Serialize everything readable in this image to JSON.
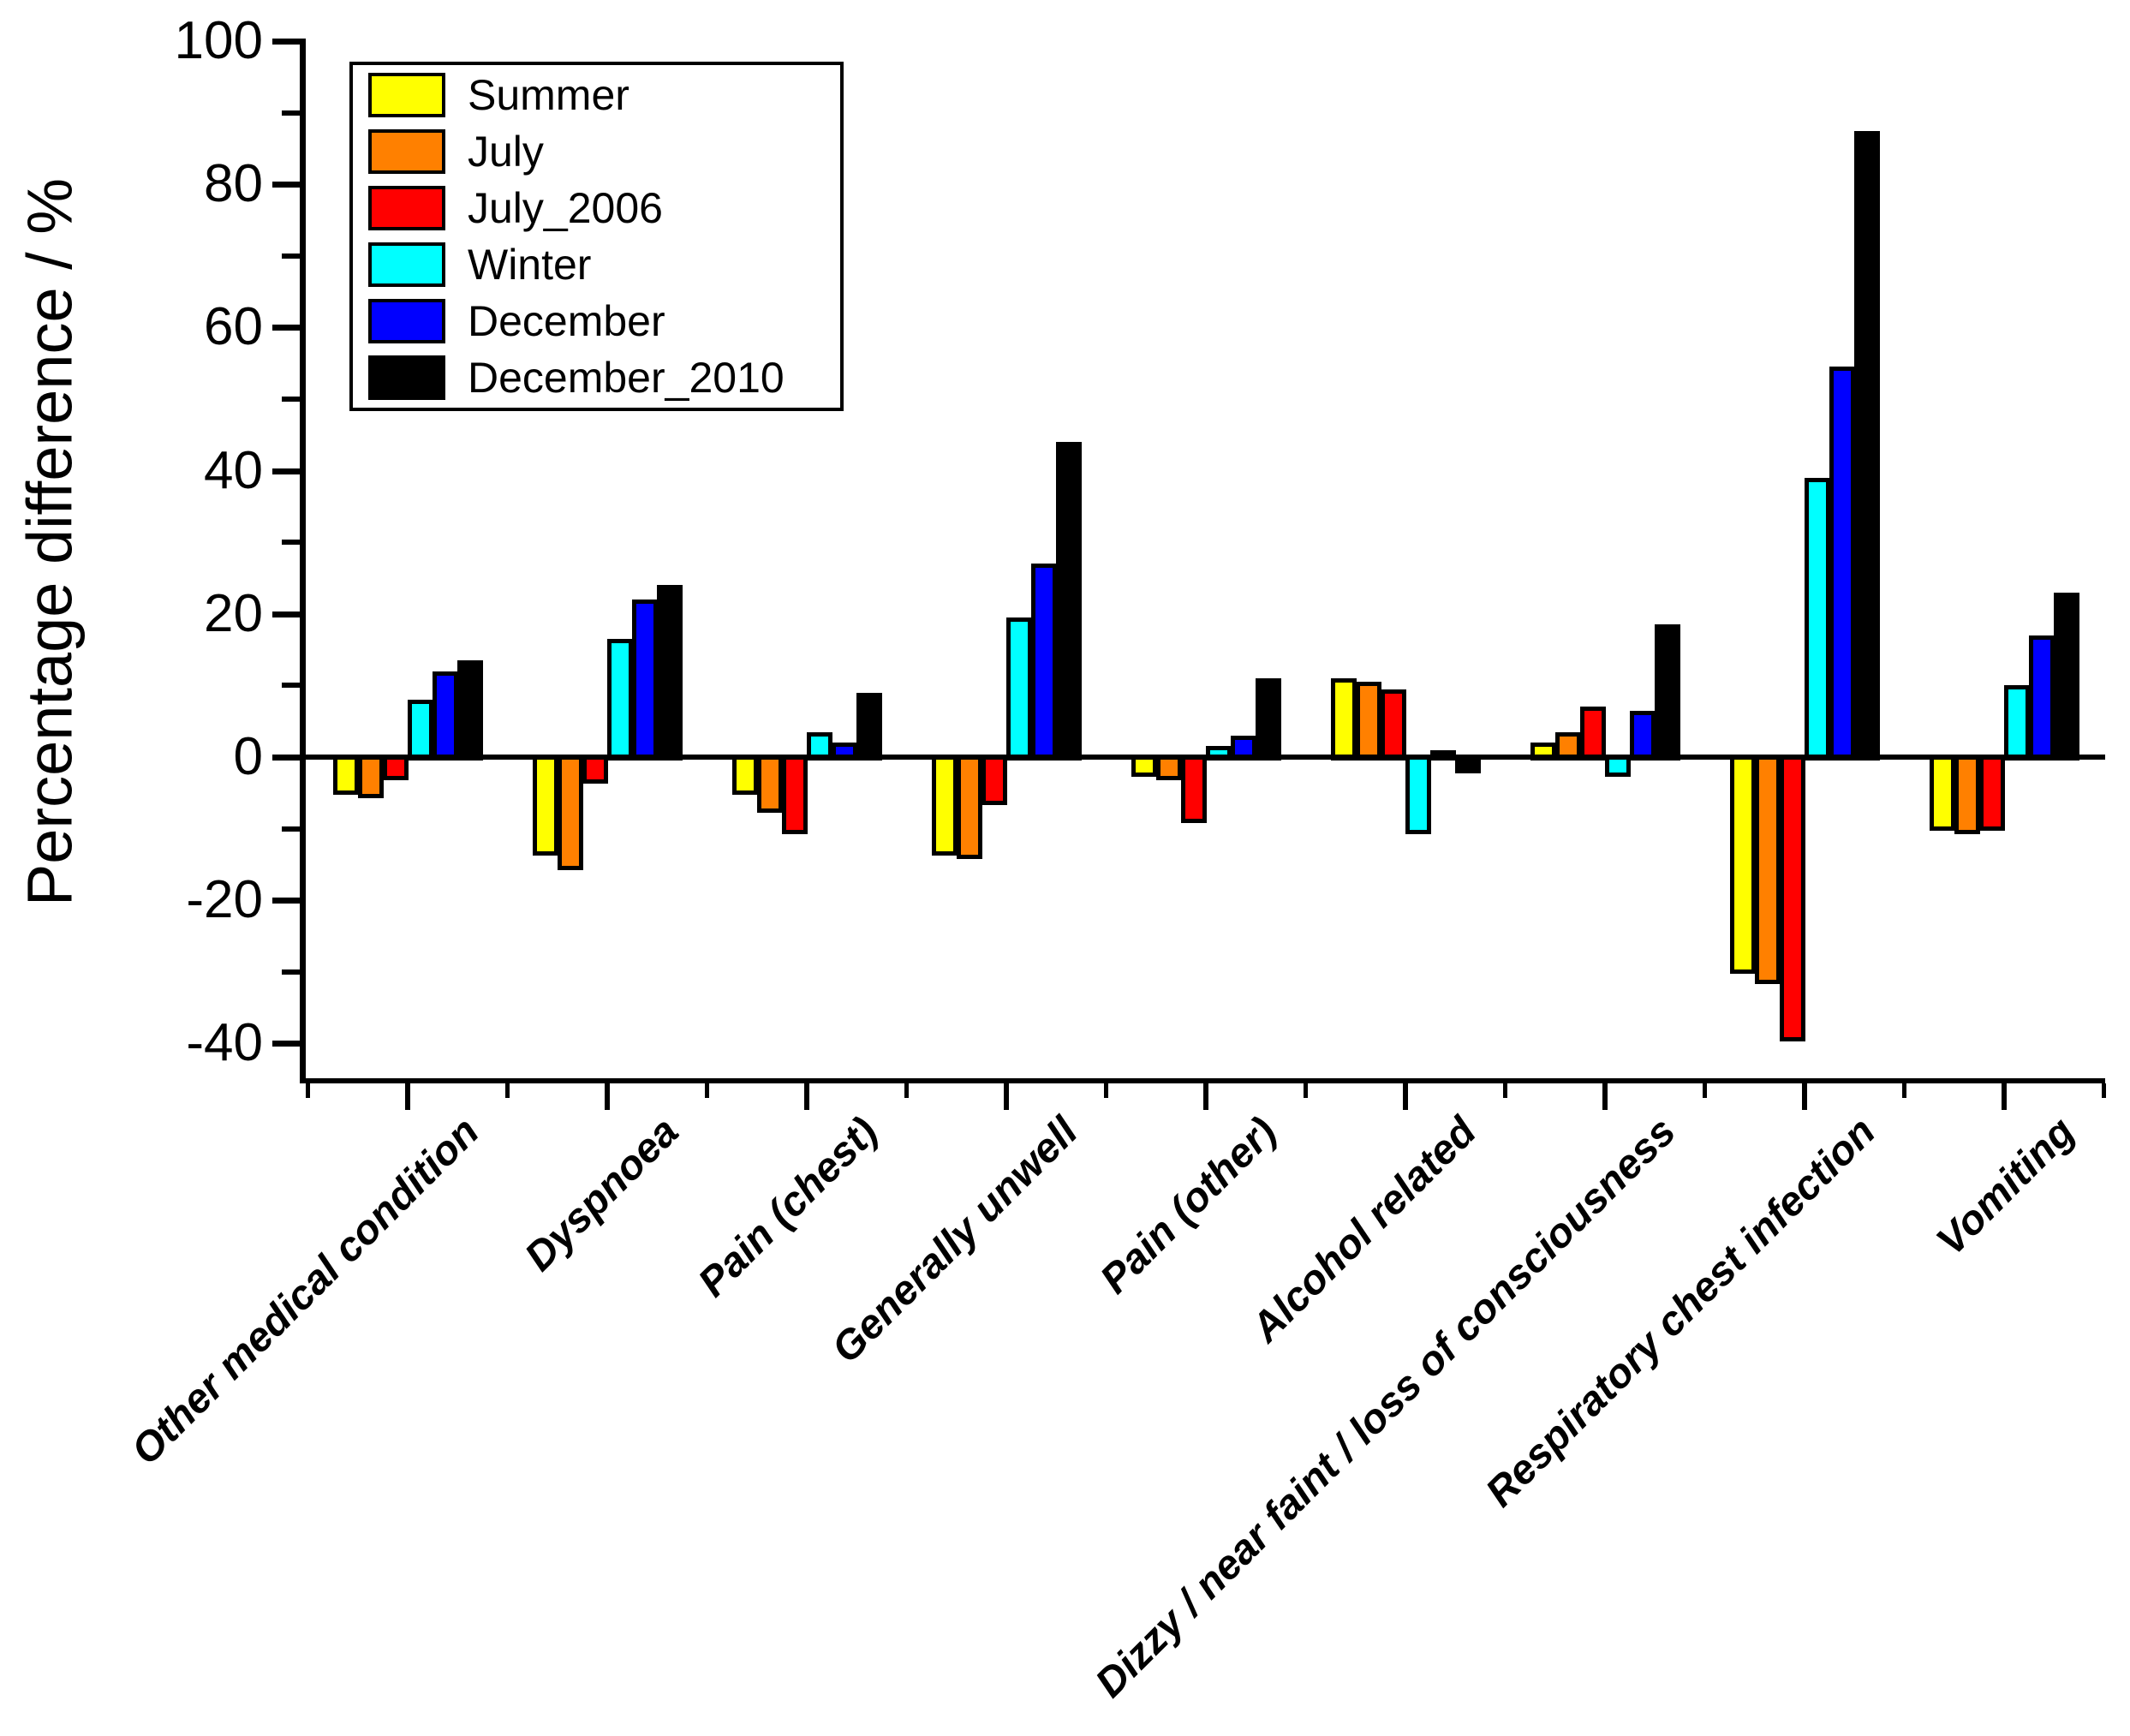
{
  "chart_data": {
    "type": "bar",
    "title": "",
    "ylabel": "Percentage difference / %",
    "xlabel": "",
    "ylim": [
      -45,
      100
    ],
    "yticks_major": [
      -40,
      -20,
      0,
      20,
      40,
      60,
      80,
      100
    ],
    "yticks_minor": [
      -30,
      -10,
      10,
      30,
      50,
      70,
      90
    ],
    "grid": false,
    "legend_position": "top-left",
    "categories": [
      "Other medical condition",
      "Dyspnoea",
      "Pain (chest)",
      "Generally unwell",
      "Pain (other)",
      "Alcohol related",
      "Dizzy / near faint / loss of consciousness",
      "Respiratory chest infection",
      "Vomiting"
    ],
    "series": [
      {
        "name": "Summer",
        "color": "#FFFF00",
        "values": [
          -5,
          -13.5,
          -5,
          -13.5,
          -2.5,
          11,
          2,
          -30,
          -10
        ]
      },
      {
        "name": "July",
        "color": "#FF8000",
        "values": [
          -5.5,
          -15.5,
          -7.5,
          -14,
          -3,
          10.5,
          3.5,
          -31.5,
          -10.5
        ]
      },
      {
        "name": "July_2006",
        "color": "#FF0000",
        "values": [
          -3,
          -3.5,
          -10.5,
          -6.5,
          -9,
          9.5,
          7,
          -39.5,
          -10
        ]
      },
      {
        "name": "Winter",
        "color": "#00FFFF",
        "values": [
          8,
          16.5,
          3.5,
          19.5,
          1.5,
          -10.5,
          -2.5,
          39,
          10
        ]
      },
      {
        "name": "December",
        "color": "#0000FF",
        "values": [
          12,
          22,
          2,
          27,
          3,
          1,
          6.5,
          54.5,
          17
        ]
      },
      {
        "name": "December_2010",
        "color": "#000000",
        "values": [
          13.5,
          24,
          9,
          44,
          11,
          -2,
          18.5,
          87.5,
          23
        ]
      }
    ]
  }
}
